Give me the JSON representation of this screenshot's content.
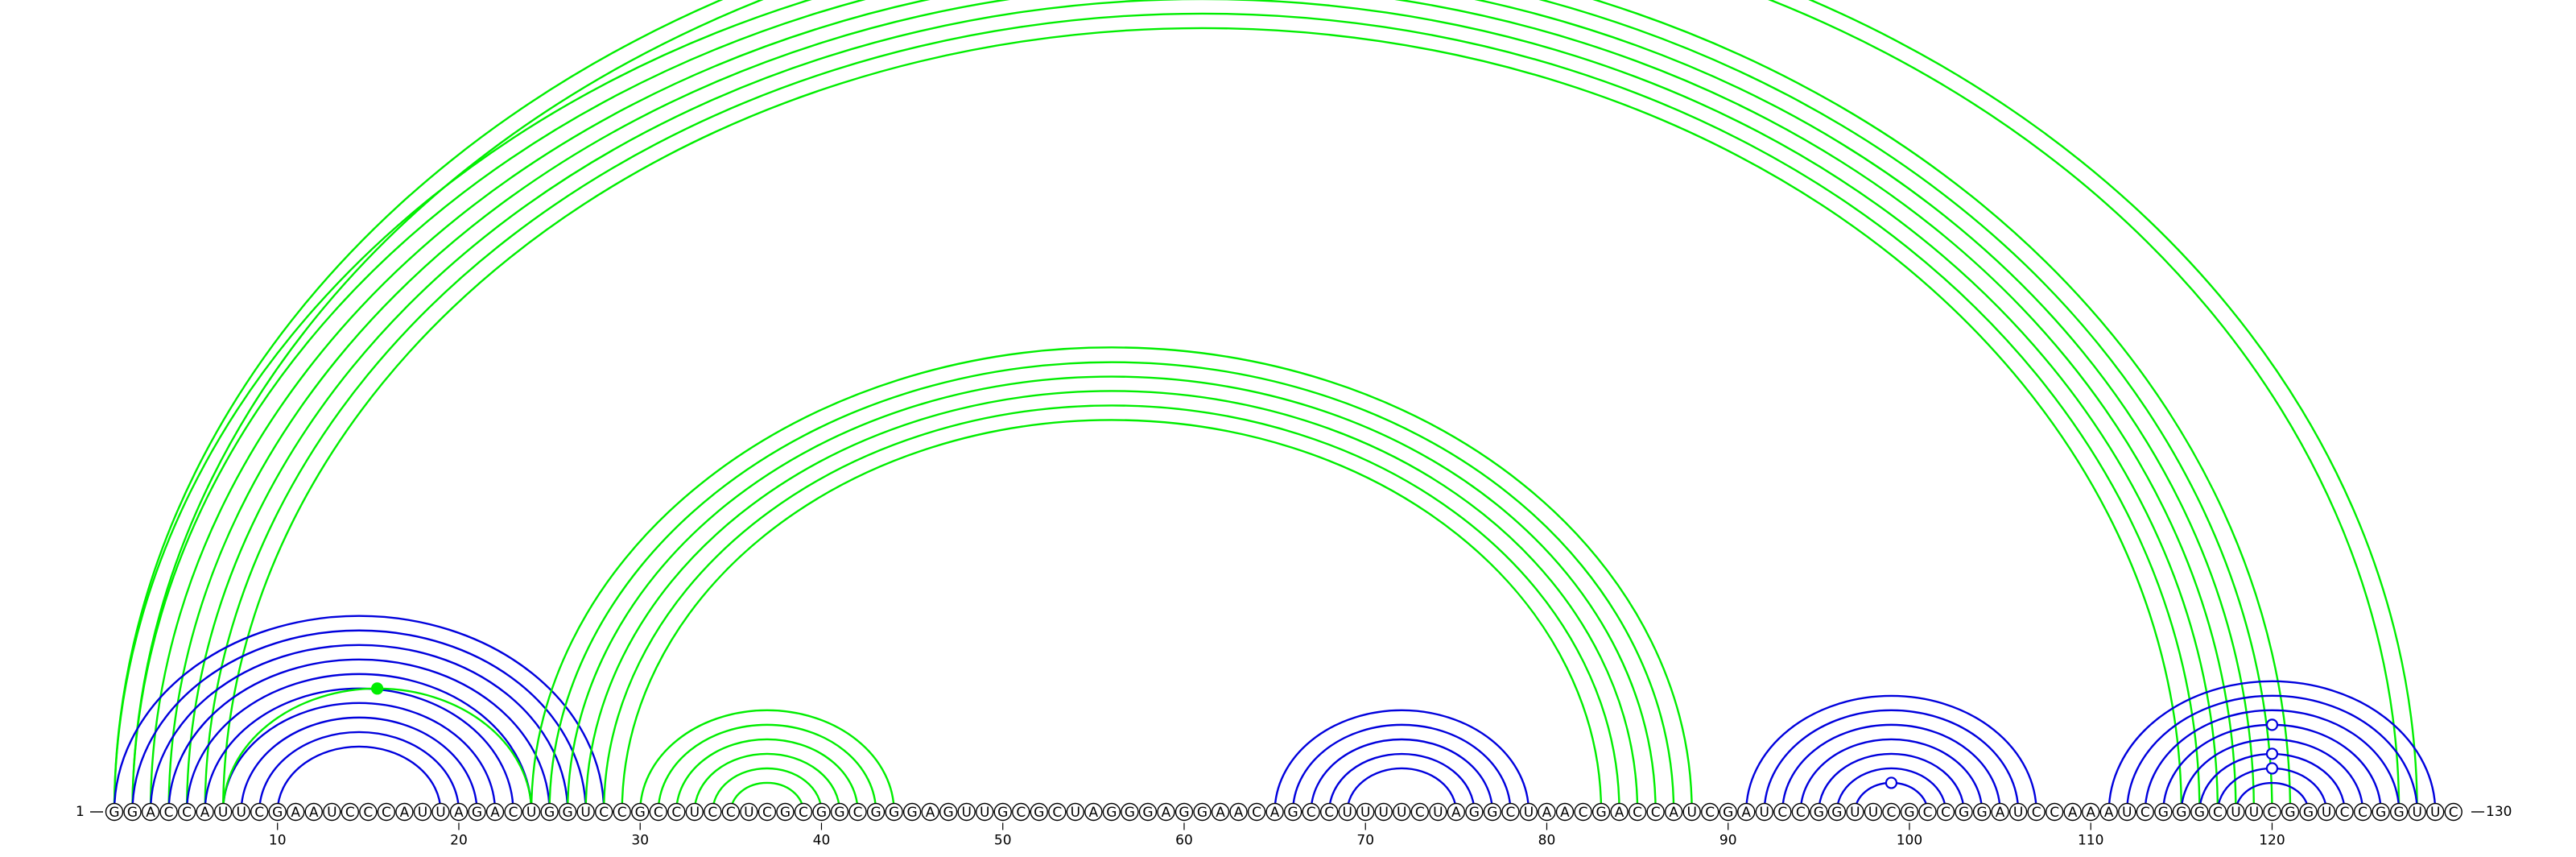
{
  "sequence": "GGACCAUUCGAAUCCCAUUAGACUGGUCCGCCUCCUCGCGGCGGGAGUUGCGCUAGGGAGGAACAGCCUUUUCUAGGCUAACGACCAUCGAUCCGGUUCGCCGGAUCCAAAUCGGGCUUCGGUCCGGUUC",
  "start_label": "1",
  "end_label": "130",
  "ticks": [
    10,
    20,
    30,
    40,
    50,
    60,
    70,
    80,
    90,
    100,
    110,
    120
  ],
  "colors": {
    "green": "#00ee00",
    "blue": "#0000dd"
  },
  "arc_groups": [
    {
      "name": "long-helix-outer",
      "color": "green",
      "pairs": [
        [
          1,
          128
        ],
        [
          2,
          127
        ]
      ]
    },
    {
      "name": "long-helix",
      "color": "green",
      "pairs": [
        [
          1,
          121
        ],
        [
          2,
          120
        ],
        [
          3,
          119
        ],
        [
          4,
          118
        ],
        [
          5,
          117
        ],
        [
          6,
          116
        ],
        [
          7,
          115
        ]
      ]
    },
    {
      "name": "inner-blue-helix",
      "color": "blue",
      "pairs": [
        [
          1,
          28
        ],
        [
          2,
          27
        ],
        [
          3,
          26
        ],
        [
          4,
          25
        ],
        [
          5,
          24
        ],
        [
          6,
          23
        ],
        [
          7,
          22
        ],
        [
          8,
          21
        ],
        [
          9,
          20
        ],
        [
          10,
          19
        ]
      ]
    },
    {
      "name": "inner-green-arc",
      "color": "green",
      "pairs": [
        [
          7,
          24
        ]
      ]
    },
    {
      "name": "middle-helix",
      "color": "green",
      "pairs": [
        [
          24,
          88
        ],
        [
          25,
          87
        ],
        [
          26,
          86
        ],
        [
          27,
          85
        ],
        [
          28,
          84
        ],
        [
          29,
          83
        ]
      ]
    },
    {
      "name": "small-helix-left",
      "color": "green",
      "pairs": [
        [
          30,
          44
        ],
        [
          31,
          43
        ],
        [
          32,
          42
        ],
        [
          33,
          41
        ],
        [
          34,
          40
        ],
        [
          35,
          39
        ]
      ]
    },
    {
      "name": "hairpin-70",
      "color": "blue",
      "pairs": [
        [
          65,
          79
        ],
        [
          66,
          78
        ],
        [
          67,
          77
        ],
        [
          68,
          76
        ],
        [
          69,
          75
        ]
      ]
    },
    {
      "name": "hairpin-98",
      "color": "blue",
      "pairs": [
        [
          91,
          107
        ],
        [
          92,
          106
        ],
        [
          93,
          105
        ],
        [
          94,
          104
        ],
        [
          95,
          103
        ],
        [
          96,
          102
        ],
        [
          97,
          101
        ]
      ]
    },
    {
      "name": "hairpin-119",
      "color": "blue",
      "pairs": [
        [
          111,
          129
        ],
        [
          112,
          128
        ],
        [
          113,
          127
        ],
        [
          114,
          126
        ],
        [
          115,
          125
        ],
        [
          116,
          124
        ],
        [
          117,
          123
        ],
        [
          118,
          122
        ]
      ]
    }
  ],
  "markers": [
    {
      "pair": [
        1,
        128
      ],
      "style": "open",
      "color": "green"
    },
    {
      "pair": [
        7,
        24
      ],
      "style": "filled",
      "color": "green"
    },
    {
      "pair": [
        97,
        101
      ],
      "style": "open",
      "color": "blue"
    },
    {
      "pair": [
        114,
        126
      ],
      "style": "open",
      "color": "blue"
    },
    {
      "pair": [
        116,
        124
      ],
      "style": "open",
      "color": "blue"
    },
    {
      "pair": [
        117,
        123
      ],
      "style": "open",
      "color": "blue"
    }
  ]
}
